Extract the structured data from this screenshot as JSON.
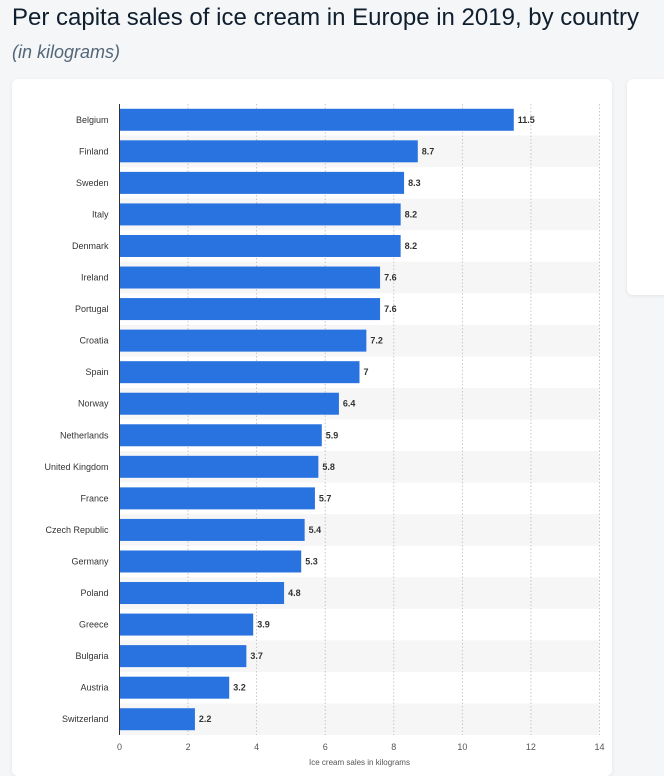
{
  "header": {
    "title": "Per capita sales of ice cream in Europe in 2019, by country",
    "subtitle": "(in kilograms)"
  },
  "colors": {
    "bar": "#2873e0",
    "band": "#f6f6f6",
    "grid": "#bbbbbb",
    "axis": "#333333"
  },
  "chart_data": {
    "type": "bar",
    "orientation": "horizontal",
    "categories": [
      "Belgium",
      "Finland",
      "Sweden",
      "Italy",
      "Denmark",
      "Ireland",
      "Portugal",
      "Croatia",
      "Spain",
      "Norway",
      "Netherlands",
      "United Kingdom",
      "France",
      "Czech Republic",
      "Germany",
      "Poland",
      "Greece",
      "Bulgaria",
      "Austria",
      "Switzerland"
    ],
    "values": [
      11.5,
      8.7,
      8.3,
      8.2,
      8.2,
      7.6,
      7.6,
      7.2,
      7,
      6.4,
      5.9,
      5.8,
      5.7,
      5.4,
      5.3,
      4.8,
      3.9,
      3.7,
      3.2,
      2.2
    ],
    "xlabel": "Ice cream sales in kilograms",
    "xlim": [
      0,
      14
    ],
    "xticks": [
      0,
      2,
      4,
      6,
      8,
      10,
      12,
      14
    ],
    "grid": "vertical dotted",
    "data_labels": true
  }
}
